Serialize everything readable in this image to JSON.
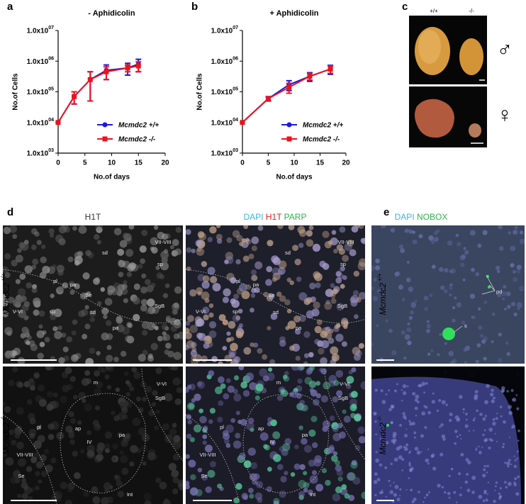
{
  "panel_labels": [
    "a",
    "b",
    "c",
    "d",
    "e"
  ],
  "chart_data": [
    {
      "type": "line",
      "title": "- Aphidicolin",
      "x_label": "No.of days",
      "y_label": "No.of Cells",
      "y_log_scale": true,
      "legend": "lower right",
      "xlim": [
        0,
        20
      ],
      "xticks": [
        0,
        5,
        10,
        15,
        20
      ],
      "ylim": [
        1000,
        10000000
      ],
      "yticks": [
        {
          "value": 1000,
          "label": "1.0x10",
          "sup": "03"
        },
        {
          "value": 10000,
          "label": "1.0x10",
          "sup": "04"
        },
        {
          "value": 100000,
          "label": "1.0x10",
          "sup": "05"
        },
        {
          "value": 1000000,
          "label": "1.0x10",
          "sup": "06"
        },
        {
          "value": 10000000,
          "label": "1.0x10",
          "sup": "07"
        }
      ],
      "x": [
        0,
        3,
        6,
        9,
        13,
        15
      ],
      "series": [
        {
          "name": "Mcmdc2 +/+",
          "color": "#1a1adb",
          "marker": "circle",
          "values": [
            10000,
            70000,
            250000,
            500000,
            600000,
            800000
          ],
          "errors": [
            0,
            30000,
            200000,
            250000,
            250000,
            350000
          ]
        },
        {
          "name": "Mcmdc2 -/-",
          "color": "#e8141e",
          "marker": "square",
          "values": [
            10000,
            70000,
            250000,
            450000,
            600000,
            700000
          ],
          "errors": [
            0,
            30000,
            200000,
            200000,
            150000,
            250000
          ]
        }
      ]
    },
    {
      "type": "line",
      "title": "+ Aphidicolin",
      "x_label": "No.of days",
      "y_label": "No.of Cells",
      "y_log_scale": true,
      "legend": "lower right",
      "xlim": [
        0,
        20
      ],
      "xticks": [
        0,
        5,
        10,
        15,
        20
      ],
      "ylim": [
        1000,
        10000000
      ],
      "yticks": [
        {
          "value": 1000,
          "label": "1.0x10",
          "sup": "03"
        },
        {
          "value": 10000,
          "label": "1.0x10",
          "sup": "04"
        },
        {
          "value": 100000,
          "label": "1.0x10",
          "sup": "05"
        },
        {
          "value": 1000000,
          "label": "1.0x10",
          "sup": "06"
        },
        {
          "value": 10000000,
          "label": "1.0x10",
          "sup": "07"
        }
      ],
      "x": [
        0,
        5,
        9,
        13,
        17
      ],
      "series": [
        {
          "name": "Mcmdc2 +/+",
          "color": "#1a1adb",
          "marker": "circle",
          "values": [
            10000,
            60000,
            170000,
            320000,
            550000
          ],
          "errors": [
            0,
            10000,
            60000,
            100000,
            180000
          ]
        },
        {
          "name": "Mcmdc2 -/-",
          "color": "#e8141e",
          "marker": "square",
          "values": [
            10000,
            60000,
            140000,
            320000,
            550000
          ],
          "errors": [
            0,
            8000,
            50000,
            80000,
            150000
          ]
        }
      ]
    }
  ],
  "panel_c": {
    "genotypes": [
      "+/+",
      "-/-"
    ],
    "sexes": [
      "♂",
      "♀"
    ]
  },
  "panel_d": {
    "headers": [
      [
        {
          "text": "H1T",
          "color": "#333333"
        }
      ],
      [
        {
          "text": "DAPI",
          "color": "#3cb4d8"
        },
        {
          "text": "H1T",
          "color": "#e02020"
        },
        {
          "text": "PARP",
          "color": "#2db24a"
        }
      ]
    ],
    "rows": [
      {
        "gene": "Mcmdc2",
        "genotype": "+/+"
      },
      {
        "gene": "Mcmdc2",
        "genotype": "-/-"
      }
    ],
    "images": [
      {
        "annotations": [
          "sd",
          "VII-VIII",
          "sp",
          "pl",
          "pa",
          "Se",
          "V-VI",
          "sp",
          "sd",
          "SgB",
          "pa"
        ]
      },
      {
        "annotations": [
          "sd",
          "VII-VIII",
          "sp",
          "pl",
          "pa",
          "Se",
          "V-VI",
          "sp",
          "sd",
          "SgB",
          "pa"
        ]
      },
      {
        "annotations": [
          "m",
          "V-VI",
          "SgB",
          "pl",
          "ap",
          "IV",
          "pa",
          "VII-VIII",
          "Se",
          "Int"
        ]
      },
      {
        "annotations": [
          "m",
          "V-VI",
          "SgB",
          "pl",
          "ap",
          "IV",
          "pa",
          "VII-VIII",
          "Se",
          "Int"
        ]
      }
    ]
  },
  "panel_e": {
    "headers": [
      [
        {
          "text": "DAPI",
          "color": "#3cb4d8"
        },
        {
          "text": "NOBOX",
          "color": "#2db24a"
        }
      ]
    ],
    "rows": [
      {
        "gene": "Mcmdc2",
        "genotype": "+/+"
      },
      {
        "gene": "Mcmdc2",
        "genotype": "-/-"
      }
    ],
    "images": [
      {
        "annotations": [
          "pd",
          "s"
        ]
      }
    ]
  }
}
